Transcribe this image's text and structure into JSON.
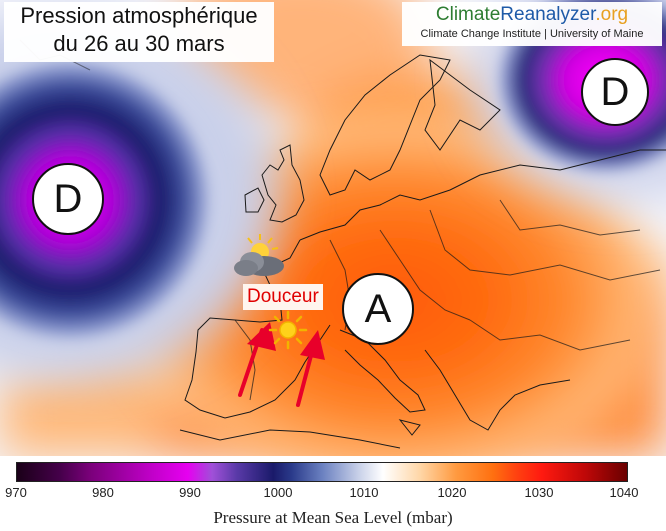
{
  "title": {
    "line1": "Pression atmosphérique",
    "line2": "du 26 au 30 mars"
  },
  "logo": {
    "part1": "Climate",
    "part2": "Reanalyzer",
    "part3": ".org",
    "subtitle": "Climate Change Institute | University of Maine"
  },
  "map_labels": {
    "low_west": "D",
    "low_northeast": "D",
    "high_center": "A",
    "warm_label": "Douceur"
  },
  "icons": {
    "sun": "sun-icon",
    "cloud_sun": "sun-behind-cloud-icon",
    "arrow": "warm-air-arrow-icon"
  },
  "colors": {
    "low_core": "#e600f0",
    "low_dark": "#1a1a6a",
    "neutral": "#ffffff",
    "high": "#ff7a1a",
    "warm_label": "#e00000",
    "arrow": "#e8002a"
  },
  "colorbar": {
    "title": "Pressure at Mean Sea Level (mbar)",
    "ticks": [
      "970",
      "980",
      "990",
      "1000",
      "1010",
      "1020",
      "1030",
      "1040"
    ],
    "min": 970,
    "max": 1040
  }
}
